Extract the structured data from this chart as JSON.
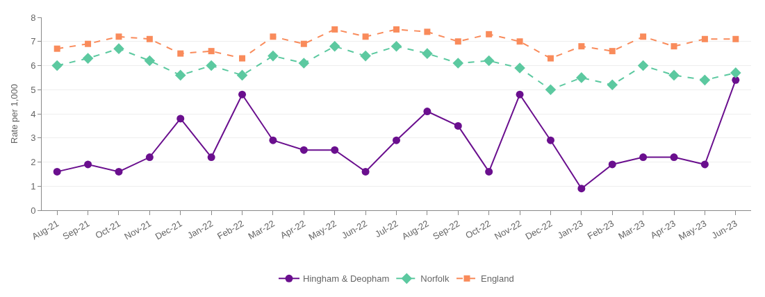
{
  "chart_data": {
    "type": "line",
    "ylabel": "Rate per 1,000",
    "categories": [
      "Aug-21",
      "Sep-21",
      "Oct-21",
      "Nov-21",
      "Dec-21",
      "Jan-22",
      "Feb-22",
      "Mar-22",
      "Apr-22",
      "May-22",
      "Jun-22",
      "Jul-22",
      "Aug-22",
      "Sep-22",
      "Oct-22",
      "Nov-22",
      "Dec-22",
      "Jan-23",
      "Feb-23",
      "Mar-23",
      "Apr-23",
      "May-23",
      "Jun-23"
    ],
    "series": [
      {
        "name": "Hingham & Deopham",
        "color": "#6a0f8e",
        "marker": "circle",
        "line_style": "solid",
        "values": [
          1.6,
          1.9,
          1.6,
          2.2,
          3.8,
          2.2,
          4.8,
          2.9,
          2.5,
          2.5,
          1.6,
          2.9,
          4.1,
          3.5,
          1.6,
          4.8,
          2.9,
          0.9,
          1.9,
          2.2,
          2.2,
          1.9,
          5.4
        ]
      },
      {
        "name": "Norfolk",
        "color": "#5cc9a0",
        "marker": "diamond",
        "line_style": "dashed",
        "values": [
          6.0,
          6.3,
          6.7,
          6.2,
          5.6,
          6.0,
          5.6,
          6.4,
          6.1,
          6.8,
          6.4,
          6.8,
          6.5,
          6.1,
          6.2,
          5.9,
          5.0,
          5.5,
          5.2,
          6.0,
          5.6,
          5.4,
          5.7
        ]
      },
      {
        "name": "England",
        "color": "#f98b5b",
        "marker": "square",
        "line_style": "dashed",
        "values": [
          6.7,
          6.9,
          7.2,
          7.1,
          6.5,
          6.6,
          6.3,
          7.2,
          6.9,
          7.5,
          7.2,
          7.5,
          7.4,
          7.0,
          7.3,
          7.0,
          6.3,
          6.8,
          6.6,
          7.2,
          6.8,
          7.1,
          7.1
        ]
      }
    ],
    "ylim": [
      0,
      8
    ],
    "yticks": [
      0,
      1,
      2,
      3,
      4,
      5,
      6,
      7,
      8
    ],
    "grid": "y",
    "legend": "bottom"
  }
}
